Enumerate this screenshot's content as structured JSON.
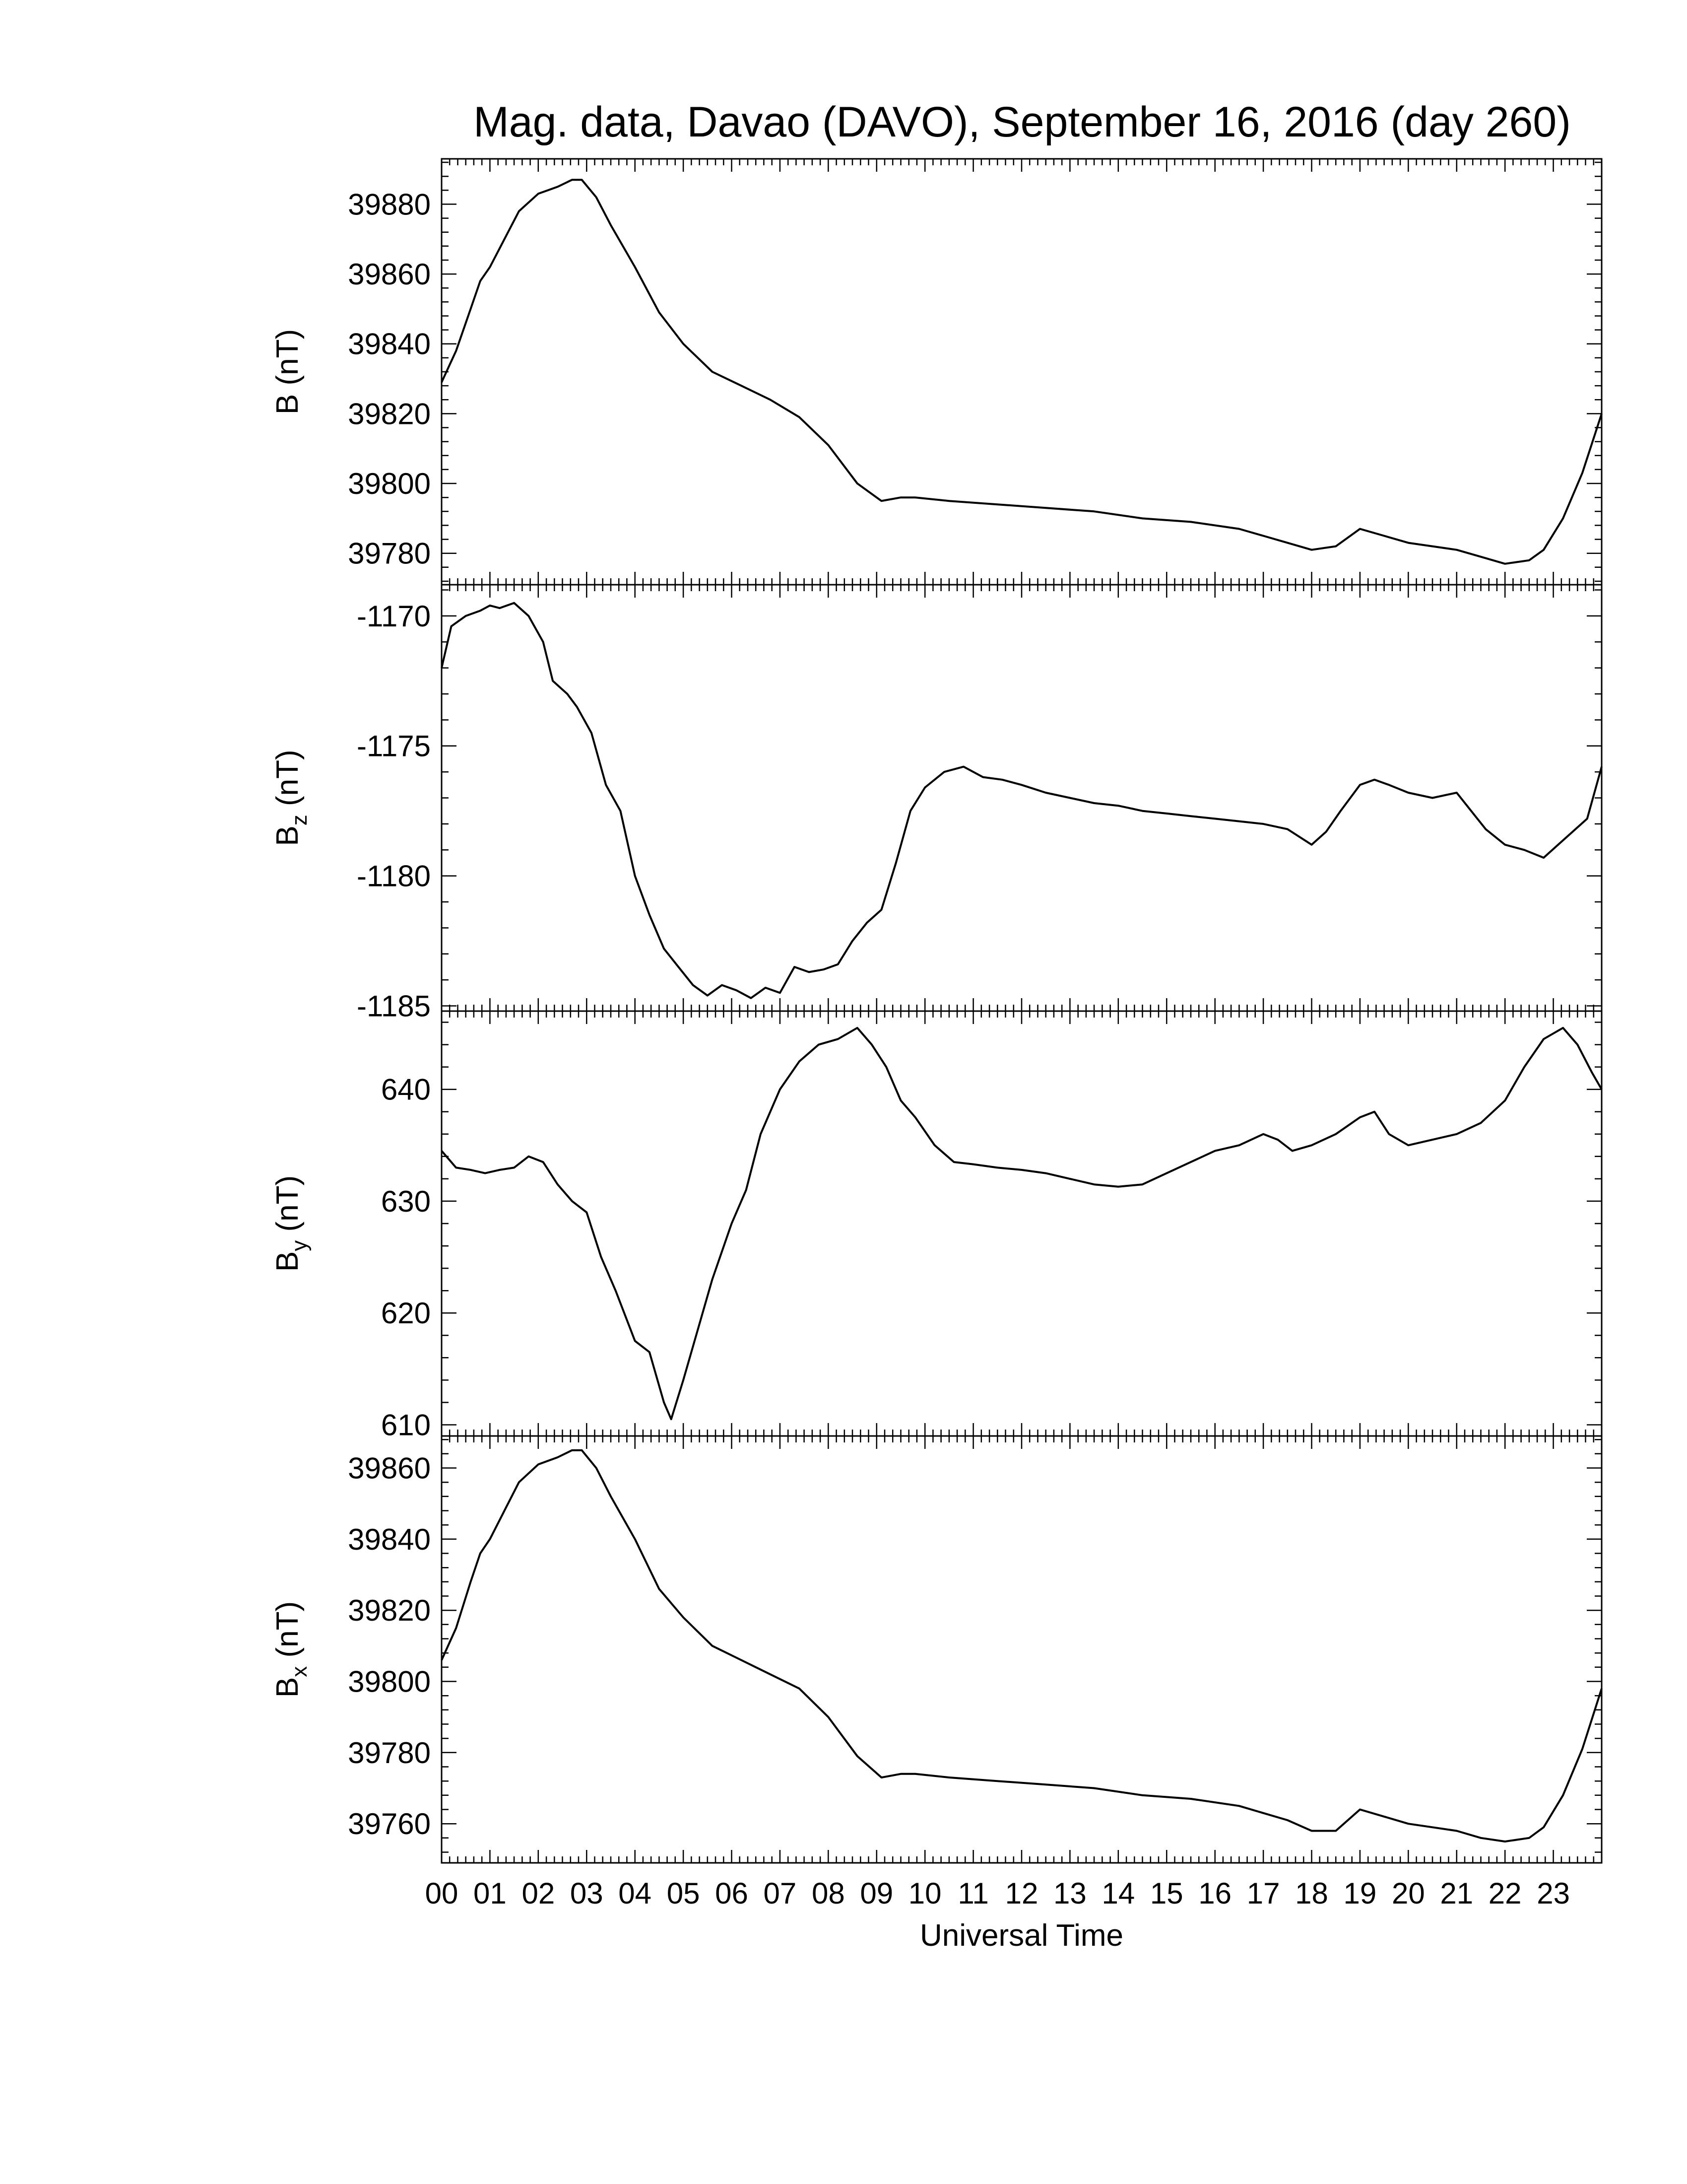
{
  "figure": {
    "title": "Mag. data, Davao (DAVO), September 16, 2016 (day 260)",
    "xlabel": "Universal Time",
    "xtick_labels": [
      "00",
      "01",
      "02",
      "03",
      "04",
      "05",
      "06",
      "07",
      "08",
      "09",
      "10",
      "11",
      "12",
      "13",
      "14",
      "15",
      "16",
      "17",
      "18",
      "19",
      "20",
      "21",
      "22",
      "23"
    ]
  },
  "chart_data": [
    {
      "type": "line",
      "ylabel": "B (nT)",
      "ylabel_main": "B",
      "ylabel_sub": "",
      "ylabel_unit": " (nT)",
      "xlim": [
        0,
        24
      ],
      "ylim": [
        39771,
        39893
      ],
      "yticks": [
        39780,
        39800,
        39820,
        39840,
        39860,
        39880
      ],
      "series": [
        {
          "x": [
            0,
            0.3,
            0.6,
            0.8,
            1.0,
            1.3,
            1.6,
            2.0,
            2.4,
            2.7,
            2.9,
            3.2,
            3.5,
            4.0,
            4.5,
            5.0,
            5.6,
            6.2,
            6.8,
            7.4,
            8.0,
            8.6,
            9.1,
            9.5,
            9.8,
            10.5,
            11.5,
            12.5,
            13.5,
            14.5,
            15.5,
            16.5,
            17.0,
            17.5,
            18.0,
            18.5,
            19.0,
            19.5,
            20.0,
            20.5,
            21.0,
            21.5,
            22.0,
            22.5,
            22.8,
            23.2,
            23.6,
            24.0
          ],
          "y": [
            39829,
            39838,
            39850,
            39858,
            39862,
            39870,
            39878,
            39883,
            39885,
            39887,
            39887,
            39882,
            39874,
            39862,
            39849,
            39840,
            39832,
            39828,
            39824,
            39819,
            39811,
            39800,
            39795,
            39796,
            39796,
            39795,
            39794,
            39793,
            39792,
            39790,
            39789,
            39787,
            39785,
            39783,
            39781,
            39782,
            39787,
            39785,
            39783,
            39782,
            39781,
            39779,
            39777,
            39778,
            39781,
            39790,
            39803,
            39820
          ]
        }
      ]
    },
    {
      "type": "line",
      "ylabel": "Bz (nT)",
      "ylabel_main": "B",
      "ylabel_sub": "z",
      "ylabel_unit": " (nT)",
      "xlim": [
        0,
        24
      ],
      "ylim": [
        -1185.2,
        -1168.8
      ],
      "yticks": [
        -1170,
        -1175,
        -1180,
        -1185
      ],
      "series": [
        {
          "x": [
            0,
            0.2,
            0.5,
            0.8,
            1.0,
            1.2,
            1.5,
            1.8,
            2.1,
            2.3,
            2.6,
            2.8,
            3.1,
            3.4,
            3.7,
            4.0,
            4.3,
            4.6,
            4.9,
            5.2,
            5.5,
            5.8,
            6.1,
            6.4,
            6.7,
            7.0,
            7.3,
            7.6,
            7.9,
            8.2,
            8.5,
            8.8,
            9.1,
            9.4,
            9.7,
            10.0,
            10.4,
            10.8,
            11.2,
            11.6,
            12.0,
            12.5,
            13.0,
            13.5,
            14.0,
            14.5,
            15.0,
            15.5,
            16.0,
            16.5,
            17.0,
            17.5,
            18.0,
            18.3,
            18.6,
            19.0,
            19.3,
            19.6,
            20.0,
            20.5,
            21.0,
            21.3,
            21.6,
            22.0,
            22.4,
            22.8,
            23.1,
            23.4,
            23.7,
            24.0
          ],
          "y": [
            -1172.0,
            -1170.4,
            -1170.0,
            -1169.8,
            -1169.6,
            -1169.7,
            -1169.5,
            -1170.0,
            -1171.0,
            -1172.5,
            -1173.0,
            -1173.5,
            -1174.5,
            -1176.5,
            -1177.5,
            -1180.0,
            -1181.5,
            -1182.8,
            -1183.5,
            -1184.2,
            -1184.6,
            -1184.2,
            -1184.4,
            -1184.7,
            -1184.3,
            -1184.5,
            -1183.5,
            -1183.7,
            -1183.6,
            -1183.4,
            -1182.5,
            -1181.8,
            -1181.3,
            -1179.5,
            -1177.5,
            -1176.6,
            -1176.0,
            -1175.8,
            -1176.2,
            -1176.3,
            -1176.5,
            -1176.8,
            -1177.0,
            -1177.2,
            -1177.3,
            -1177.5,
            -1177.6,
            -1177.7,
            -1177.8,
            -1177.9,
            -1178.0,
            -1178.2,
            -1178.8,
            -1178.3,
            -1177.5,
            -1176.5,
            -1176.3,
            -1176.5,
            -1176.8,
            -1177.0,
            -1176.8,
            -1177.5,
            -1178.2,
            -1178.8,
            -1179.0,
            -1179.3,
            -1178.8,
            -1178.3,
            -1177.8,
            -1175.8
          ]
        }
      ]
    },
    {
      "type": "line",
      "ylabel": "By (nT)",
      "ylabel_main": "B",
      "ylabel_sub": "y",
      "ylabel_unit": " (nT)",
      "xlim": [
        0,
        24
      ],
      "ylim": [
        609,
        647
      ],
      "yticks": [
        610,
        620,
        630,
        640
      ],
      "series": [
        {
          "x": [
            0,
            0.3,
            0.6,
            0.9,
            1.2,
            1.5,
            1.8,
            2.1,
            2.4,
            2.7,
            3.0,
            3.3,
            3.6,
            4.0,
            4.3,
            4.6,
            4.75,
            5.0,
            5.3,
            5.6,
            6.0,
            6.3,
            6.6,
            7.0,
            7.4,
            7.8,
            8.2,
            8.6,
            8.9,
            9.2,
            9.5,
            9.8,
            10.2,
            10.6,
            11.0,
            11.5,
            12.0,
            12.5,
            13.0,
            13.5,
            14.0,
            14.5,
            15.0,
            15.5,
            16.0,
            16.5,
            17.0,
            17.3,
            17.6,
            18.0,
            18.5,
            19.0,
            19.3,
            19.6,
            20.0,
            20.5,
            21.0,
            21.5,
            22.0,
            22.4,
            22.8,
            23.2,
            23.5,
            23.8,
            24.0
          ],
          "y": [
            634.5,
            633.0,
            632.8,
            632.5,
            632.8,
            633.0,
            634.0,
            633.5,
            631.5,
            630.0,
            629.0,
            625.0,
            622.0,
            617.5,
            616.5,
            612.0,
            610.5,
            614.0,
            618.5,
            623.0,
            628.0,
            631.0,
            636.0,
            640.0,
            642.5,
            644.0,
            644.5,
            645.5,
            644.0,
            642.0,
            639.0,
            637.5,
            635.0,
            633.5,
            633.3,
            633.0,
            632.8,
            632.5,
            632.0,
            631.5,
            631.3,
            631.5,
            632.5,
            633.5,
            634.5,
            635.0,
            636.0,
            635.5,
            634.5,
            635.0,
            636.0,
            637.5,
            638.0,
            636.0,
            635.0,
            635.5,
            636.0,
            637.0,
            639.0,
            642.0,
            644.5,
            645.5,
            644.0,
            641.5,
            640.0
          ]
        }
      ]
    },
    {
      "type": "line",
      "ylabel": "Bx (nT)",
      "ylabel_main": "B",
      "ylabel_sub": "x",
      "ylabel_unit": " (nT)",
      "xlim": [
        0,
        24
      ],
      "ylim": [
        39749,
        39869
      ],
      "yticks": [
        39760,
        39780,
        39800,
        39820,
        39840,
        39860
      ],
      "series": [
        {
          "x": [
            0,
            0.3,
            0.6,
            0.8,
            1.0,
            1.3,
            1.6,
            2.0,
            2.4,
            2.7,
            2.9,
            3.2,
            3.5,
            4.0,
            4.5,
            5.0,
            5.6,
            6.2,
            6.8,
            7.4,
            8.0,
            8.6,
            9.1,
            9.5,
            9.8,
            10.5,
            11.5,
            12.5,
            13.5,
            14.5,
            15.5,
            16.5,
            17.0,
            17.5,
            18.0,
            18.5,
            19.0,
            19.5,
            20.0,
            20.5,
            21.0,
            21.5,
            22.0,
            22.5,
            22.8,
            23.2,
            23.6,
            24.0
          ],
          "y": [
            39806,
            39815,
            39828,
            39836,
            39840,
            39848,
            39856,
            39861,
            39863,
            39865,
            39865,
            39860,
            39852,
            39840,
            39826,
            39818,
            39810,
            39806,
            39802,
            39798,
            39790,
            39779,
            39773,
            39774,
            39774,
            39773,
            39772,
            39771,
            39770,
            39768,
            39767,
            39765,
            39763,
            39761,
            39758,
            39758,
            39764,
            39762,
            39760,
            39759,
            39758,
            39756,
            39755,
            39756,
            39759,
            39768,
            39781,
            39798
          ]
        }
      ]
    }
  ]
}
